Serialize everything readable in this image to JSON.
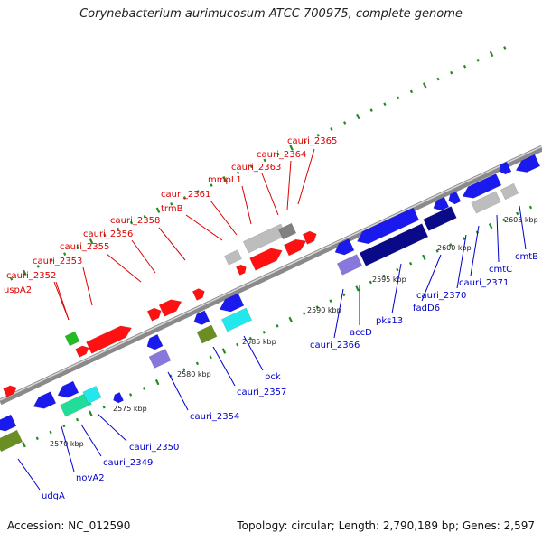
{
  "map": {
    "title": "Corynebacterium aurimucosum ATCC 700975, complete genome",
    "accession": "Accession: NC_012590",
    "summary": "Topology: circular; Length: 2,790,189 bp; Genes: 2,597"
  },
  "colors": {
    "forward_label": "#dd0000",
    "reverse_label": "#0000cc",
    "forward_gene": "#ff1111",
    "reverse_gene": "#1a1aee",
    "dark_blue": "#0a0a88",
    "lavender": "#8877dd",
    "cyan": "#22e8ee",
    "teal": "#22dd99",
    "olive": "#6b8e23",
    "green": "#22bb22",
    "gray": "#bdbdbd",
    "dark_gray": "#808080",
    "backbone": "#8a8a8a",
    "tick": "#228b22"
  },
  "scale_ticks": [
    "2570 kbp",
    "2575 kbp",
    "2580 kbp",
    "2585 kbp",
    "2590 kbp",
    "2595 kbp",
    "2600 kbp",
    "2605 kbp"
  ],
  "forward_labels": [
    "uspA2",
    "cauri_2352",
    "cauri_2353",
    "cauri_2355",
    "cauri_2356",
    "cauri_2358",
    "trmB",
    "cauri_2361",
    "mmpL1",
    "cauri_2363",
    "cauri_2364",
    "cauri_2365"
  ],
  "reverse_labels": [
    "udgA",
    "novA2",
    "cauri_2349",
    "cauri_2350",
    "cauri_2354",
    "cauri_2357",
    "pck",
    "cauri_2366",
    "accD",
    "pks13",
    "fadD6",
    "cauri_2370",
    "cauri_2371",
    "cmtC",
    "cmtB"
  ]
}
